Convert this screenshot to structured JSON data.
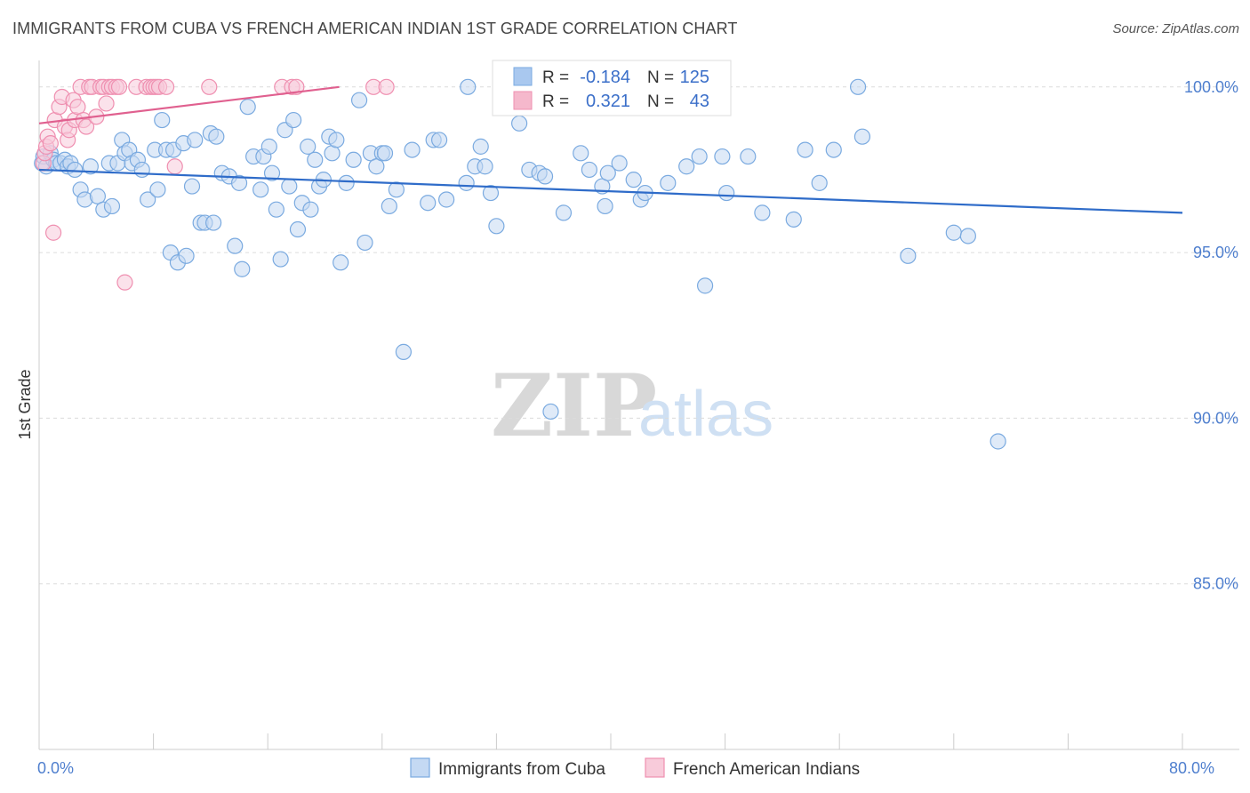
{
  "title": "IMMIGRANTS FROM CUBA VS FRENCH AMERICAN INDIAN 1ST GRADE CORRELATION CHART",
  "source": "Source: ZipAtlas.com",
  "watermark": {
    "zip": "ZIP",
    "atlas": "atlas"
  },
  "chart_data": {
    "type": "scatter",
    "ylabel": "1st Grade",
    "xlim": [
      0,
      80
    ],
    "ylim": [
      80,
      100.8
    ],
    "x_tick_labels": [
      {
        "value": 0,
        "label": "0.0%"
      },
      {
        "value": 80,
        "label": "80.0%"
      }
    ],
    "y_tick_labels": [
      {
        "value": 100,
        "label": "100.0%"
      },
      {
        "value": 95,
        "label": "95.0%"
      },
      {
        "value": 90,
        "label": "90.0%"
      },
      {
        "value": 85,
        "label": "85.0%"
      }
    ],
    "grid": "horizontal dashed",
    "legend_position": "bottom-center",
    "stats_box": [
      {
        "r_label": "R =",
        "r": "-0.184",
        "n_label": "N =",
        "n": "125",
        "color": "#a9c8ef"
      },
      {
        "r_label": "R =",
        "r": "0.321",
        "n_label": "N =",
        "n": "43",
        "color": "#f5b8cc"
      }
    ],
    "series": [
      {
        "name": "Immigrants from Cuba",
        "color": "#7aaae0",
        "fill": "#c4d9f3",
        "trend": {
          "x0": 0,
          "y0": 97.5,
          "x1": 80,
          "y1": 96.2,
          "color": "#2f6cc9"
        },
        "points": [
          [
            0.2,
            97.7
          ],
          [
            0.3,
            97.9
          ],
          [
            0.5,
            97.6
          ],
          [
            0.8,
            98.0
          ],
          [
            1.0,
            97.8
          ],
          [
            1.2,
            97.7
          ],
          [
            1.5,
            97.7
          ],
          [
            1.8,
            97.8
          ],
          [
            2.0,
            97.6
          ],
          [
            2.2,
            97.7
          ],
          [
            2.5,
            97.5
          ],
          [
            2.9,
            96.9
          ],
          [
            3.2,
            96.6
          ],
          [
            3.6,
            97.6
          ],
          [
            4.1,
            96.7
          ],
          [
            4.5,
            96.3
          ],
          [
            4.9,
            97.7
          ],
          [
            5.1,
            96.4
          ],
          [
            5.5,
            97.7
          ],
          [
            5.8,
            98.4
          ],
          [
            6.0,
            98.0
          ],
          [
            6.3,
            98.1
          ],
          [
            6.5,
            97.7
          ],
          [
            6.9,
            97.8
          ],
          [
            7.2,
            97.5
          ],
          [
            7.6,
            96.6
          ],
          [
            8.1,
            98.1
          ],
          [
            8.3,
            96.9
          ],
          [
            8.6,
            99.0
          ],
          [
            8.9,
            98.1
          ],
          [
            9.2,
            95.0
          ],
          [
            9.4,
            98.1
          ],
          [
            9.7,
            94.7
          ],
          [
            10.1,
            98.3
          ],
          [
            10.3,
            94.9
          ],
          [
            10.7,
            97.0
          ],
          [
            10.9,
            98.4
          ],
          [
            11.3,
            95.9
          ],
          [
            11.6,
            95.9
          ],
          [
            12.0,
            98.6
          ],
          [
            12.2,
            95.9
          ],
          [
            12.4,
            98.5
          ],
          [
            12.8,
            97.4
          ],
          [
            13.3,
            97.3
          ],
          [
            13.7,
            95.2
          ],
          [
            14.0,
            97.1
          ],
          [
            14.2,
            94.5
          ],
          [
            14.6,
            99.4
          ],
          [
            15.0,
            97.9
          ],
          [
            15.5,
            96.9
          ],
          [
            15.7,
            97.9
          ],
          [
            16.1,
            98.2
          ],
          [
            16.3,
            97.4
          ],
          [
            16.6,
            96.3
          ],
          [
            16.9,
            94.8
          ],
          [
            17.2,
            98.7
          ],
          [
            17.5,
            97.0
          ],
          [
            17.8,
            99.0
          ],
          [
            18.1,
            95.7
          ],
          [
            18.4,
            96.5
          ],
          [
            18.8,
            98.2
          ],
          [
            19.0,
            96.3
          ],
          [
            19.3,
            97.8
          ],
          [
            19.6,
            97.0
          ],
          [
            19.9,
            97.2
          ],
          [
            20.3,
            98.5
          ],
          [
            20.5,
            98.0
          ],
          [
            20.8,
            98.4
          ],
          [
            21.1,
            94.7
          ],
          [
            21.5,
            97.1
          ],
          [
            22.0,
            97.8
          ],
          [
            22.4,
            99.6
          ],
          [
            22.8,
            95.3
          ],
          [
            23.2,
            98.0
          ],
          [
            23.6,
            97.6
          ],
          [
            24.0,
            98.0
          ],
          [
            24.2,
            98.0
          ],
          [
            24.5,
            96.4
          ],
          [
            25.0,
            96.9
          ],
          [
            25.5,
            92.0
          ],
          [
            26.1,
            98.1
          ],
          [
            27.2,
            96.5
          ],
          [
            27.6,
            98.4
          ],
          [
            28.0,
            98.4
          ],
          [
            28.5,
            96.6
          ],
          [
            29.9,
            97.1
          ],
          [
            30.0,
            100.0
          ],
          [
            30.5,
            97.6
          ],
          [
            30.9,
            98.2
          ],
          [
            31.2,
            97.6
          ],
          [
            31.6,
            96.8
          ],
          [
            32.0,
            95.8
          ],
          [
            33.6,
            98.9
          ],
          [
            34.3,
            97.5
          ],
          [
            35.0,
            97.4
          ],
          [
            35.4,
            97.3
          ],
          [
            35.8,
            90.2
          ],
          [
            36.2,
            100.0
          ],
          [
            36.7,
            96.2
          ],
          [
            37.9,
            98.0
          ],
          [
            38.5,
            97.5
          ],
          [
            39.4,
            97.0
          ],
          [
            39.6,
            96.4
          ],
          [
            39.8,
            97.4
          ],
          [
            40.6,
            97.7
          ],
          [
            41.6,
            97.2
          ],
          [
            42.1,
            96.6
          ],
          [
            42.4,
            96.8
          ],
          [
            44.0,
            97.1
          ],
          [
            45.3,
            97.6
          ],
          [
            46.2,
            97.9
          ],
          [
            46.6,
            94.0
          ],
          [
            47.8,
            97.9
          ],
          [
            48.1,
            96.8
          ],
          [
            49.6,
            97.9
          ],
          [
            50.6,
            96.2
          ],
          [
            52.8,
            96.0
          ],
          [
            53.6,
            98.1
          ],
          [
            54.6,
            97.1
          ],
          [
            55.6,
            98.1
          ],
          [
            57.3,
            100.0
          ],
          [
            57.6,
            98.5
          ],
          [
            60.8,
            94.9
          ],
          [
            64.0,
            95.6
          ],
          [
            65.0,
            95.5
          ],
          [
            67.1,
            89.3
          ]
        ]
      },
      {
        "name": "French American Indians",
        "color": "#ef8fb0",
        "fill": "#f8cbda",
        "trend": {
          "x0": 0,
          "y0": 98.9,
          "x1": 21.0,
          "y1": 100.0,
          "color": "#e0608f"
        },
        "points": [
          [
            0.3,
            97.7
          ],
          [
            0.4,
            98.0
          ],
          [
            0.5,
            98.2
          ],
          [
            0.6,
            98.5
          ],
          [
            0.8,
            98.3
          ],
          [
            1.0,
            95.6
          ],
          [
            1.1,
            99.0
          ],
          [
            1.4,
            99.4
          ],
          [
            1.6,
            99.7
          ],
          [
            1.8,
            98.8
          ],
          [
            2.0,
            98.4
          ],
          [
            2.1,
            98.7
          ],
          [
            2.4,
            99.6
          ],
          [
            2.5,
            99.0
          ],
          [
            2.7,
            99.4
          ],
          [
            2.9,
            100.0
          ],
          [
            3.1,
            99.0
          ],
          [
            3.3,
            98.8
          ],
          [
            3.5,
            100.0
          ],
          [
            3.7,
            100.0
          ],
          [
            4.0,
            99.1
          ],
          [
            4.3,
            100.0
          ],
          [
            4.5,
            100.0
          ],
          [
            4.7,
            99.5
          ],
          [
            4.9,
            100.0
          ],
          [
            5.1,
            100.0
          ],
          [
            5.4,
            100.0
          ],
          [
            5.6,
            100.0
          ],
          [
            6.0,
            94.1
          ],
          [
            6.8,
            100.0
          ],
          [
            7.5,
            100.0
          ],
          [
            7.8,
            100.0
          ],
          [
            8.0,
            100.0
          ],
          [
            8.2,
            100.0
          ],
          [
            8.4,
            100.0
          ],
          [
            8.9,
            100.0
          ],
          [
            9.5,
            97.6
          ],
          [
            11.9,
            100.0
          ],
          [
            17.0,
            100.0
          ],
          [
            17.7,
            100.0
          ],
          [
            18.0,
            100.0
          ],
          [
            23.4,
            100.0
          ],
          [
            24.3,
            100.0
          ]
        ]
      }
    ]
  }
}
